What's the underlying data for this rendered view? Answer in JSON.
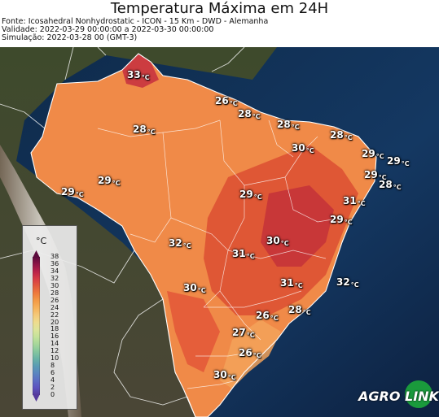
{
  "title": "Temperatura Máxima em 24H",
  "meta": {
    "source": "Fonte: Icosahedral Nonhydrostatic - ICON - 15 Km - DWD - Alemanha",
    "validity": "Validade: 2022-03-29 00:00:00 a 2022-03-30 00:00:00",
    "simulation": "Simulação: 2022-03-28 00 (GMT-3)"
  },
  "legend": {
    "unit": "°C",
    "ticks": [
      "38",
      "36",
      "34",
      "32",
      "30",
      "28",
      "26",
      "24",
      "22",
      "20",
      "18",
      "16",
      "14",
      "12",
      "10",
      "8",
      "6",
      "4",
      "2",
      "0"
    ],
    "colors_top_to_bottom": [
      "#5b0a3c",
      "#8c1446",
      "#b8204a",
      "#d63a46",
      "#e25a3e",
      "#ee7a3c",
      "#f39a46",
      "#f6b25a",
      "#f5c978",
      "#eedc8e",
      "#dde49a",
      "#c4e29a",
      "#a6d79a",
      "#86c79e",
      "#69b3a6",
      "#5a9cb4",
      "#5a86c0",
      "#5c6cc4",
      "#5c52c0",
      "#553a9c"
    ]
  },
  "labels": [
    {
      "value": "33",
      "unit": "°C"
    },
    {
      "value": "26",
      "unit": "°C"
    },
    {
      "value": "28",
      "unit": "°C"
    },
    {
      "value": "28",
      "unit": "°C"
    },
    {
      "value": "28",
      "unit": "°C"
    },
    {
      "value": "28",
      "unit": "°C"
    },
    {
      "value": "30",
      "unit": "°C"
    },
    {
      "value": "29",
      "unit": "°C"
    },
    {
      "value": "29",
      "unit": "°C"
    },
    {
      "value": "29",
      "unit": "°C"
    },
    {
      "value": "28",
      "unit": "°C"
    },
    {
      "value": "29",
      "unit": "°C"
    },
    {
      "value": "29",
      "unit": "°C"
    },
    {
      "value": "29",
      "unit": "°C"
    },
    {
      "value": "31",
      "unit": "°C"
    },
    {
      "value": "29",
      "unit": "°C"
    },
    {
      "value": "32",
      "unit": "°C"
    },
    {
      "value": "30",
      "unit": "°C"
    },
    {
      "value": "31",
      "unit": "°C"
    },
    {
      "value": "30",
      "unit": "°C"
    },
    {
      "value": "31",
      "unit": "°C"
    },
    {
      "value": "32",
      "unit": "°C"
    },
    {
      "value": "26",
      "unit": "°C"
    },
    {
      "value": "28",
      "unit": "°C"
    },
    {
      "value": "27",
      "unit": "°C"
    },
    {
      "value": "26",
      "unit": "°C"
    },
    {
      "value": "30",
      "unit": "°C"
    }
  ],
  "logo": {
    "part1": "AGRO",
    "part2": "LINK"
  }
}
